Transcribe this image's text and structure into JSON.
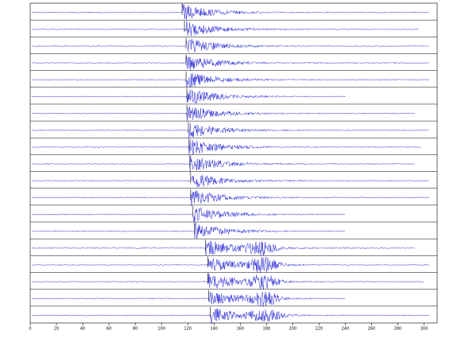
{
  "chart_data": {
    "type": "seismogram",
    "xlim": [
      0,
      310
    ],
    "xticks": [
      0,
      20,
      40,
      60,
      80,
      100,
      120,
      140,
      160,
      180,
      200,
      220,
      240,
      260,
      280,
      300
    ],
    "color": "#1f1fd6",
    "traces": [
      {
        "onset": 115.7,
        "end": 304
      },
      {
        "onset": 117.5,
        "end": 296
      },
      {
        "onset": 118.7,
        "end": 304
      },
      {
        "onset": 118.7,
        "end": 304
      },
      {
        "onset": 118.7,
        "end": 304
      },
      {
        "onset": 119.3,
        "end": 240
      },
      {
        "onset": 119.3,
        "end": 293
      },
      {
        "onset": 120.5,
        "end": 304
      },
      {
        "onset": 121,
        "end": 298
      },
      {
        "onset": 121.6,
        "end": 293
      },
      {
        "onset": 122.2,
        "end": 304
      },
      {
        "onset": 122.2,
        "end": 304
      },
      {
        "onset": 124,
        "end": 240
      },
      {
        "onset": 125.2,
        "end": 240
      },
      {
        "onset": 133.6,
        "end": 293
      },
      {
        "onset": 135.4,
        "end": 304
      },
      {
        "onset": 135.4,
        "end": 300
      },
      {
        "onset": 136,
        "end": 240
      },
      {
        "onset": 137.2,
        "end": 304
      }
    ]
  }
}
